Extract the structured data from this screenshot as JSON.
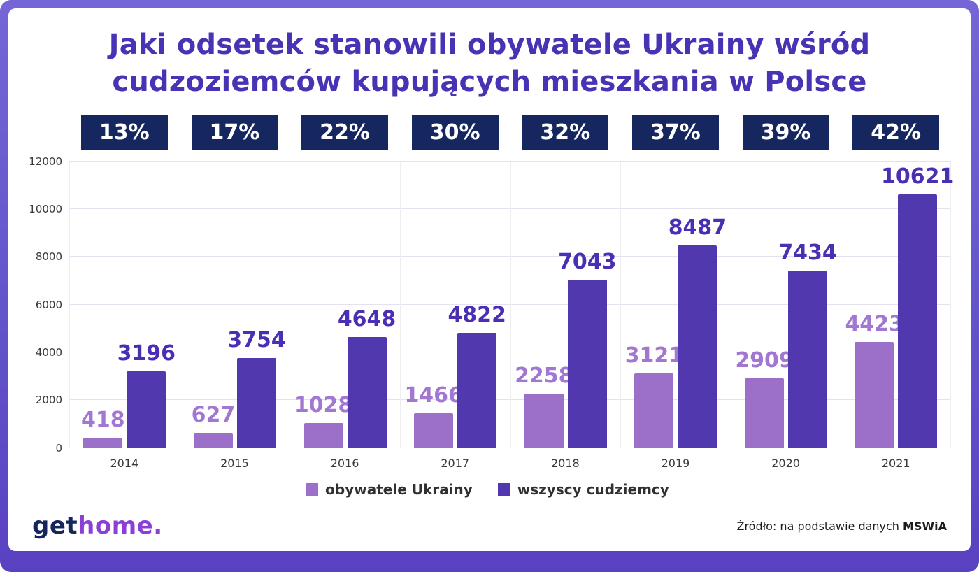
{
  "title": {
    "line1": "Jaki odsetek stanowili obywatele Ukrainy wśród",
    "line2": "cudzoziemców kupujących mieszkania w Polsce"
  },
  "chart_data": {
    "type": "bar",
    "title": "Jaki odsetek stanowili obywatele Ukrainy wśród cudzoziemców kupujących mieszkania w Polsce",
    "categories": [
      "2014",
      "2015",
      "2016",
      "2017",
      "2018",
      "2019",
      "2020",
      "2021"
    ],
    "series": [
      {
        "name": "obywatele Ukrainy",
        "color": "#9c6fc9",
        "label_color": "#a277d2",
        "values": [
          418,
          627,
          1028,
          1466,
          2258,
          3121,
          2909,
          4423
        ]
      },
      {
        "name": "wszyscy cudziemcy",
        "color": "#5138ae",
        "label_color": "#4a2fb4",
        "values": [
          3196,
          3754,
          4648,
          4822,
          7043,
          8487,
          7434,
          10621
        ]
      }
    ],
    "percent_labels": [
      "13%",
      "17%",
      "22%",
      "30%",
      "32%",
      "37%",
      "39%",
      "42%"
    ],
    "ylim": [
      0,
      12000
    ],
    "yticks": [
      0,
      2000,
      4000,
      6000,
      8000,
      10000,
      12000
    ],
    "grid": true,
    "legend_position": "bottom",
    "badge_color": "#16265e"
  },
  "footer": {
    "logo_get": "get",
    "logo_home": "home.",
    "source_prefix": "Źródło: na podstawie danych ",
    "source_bold": "MSWiA"
  }
}
